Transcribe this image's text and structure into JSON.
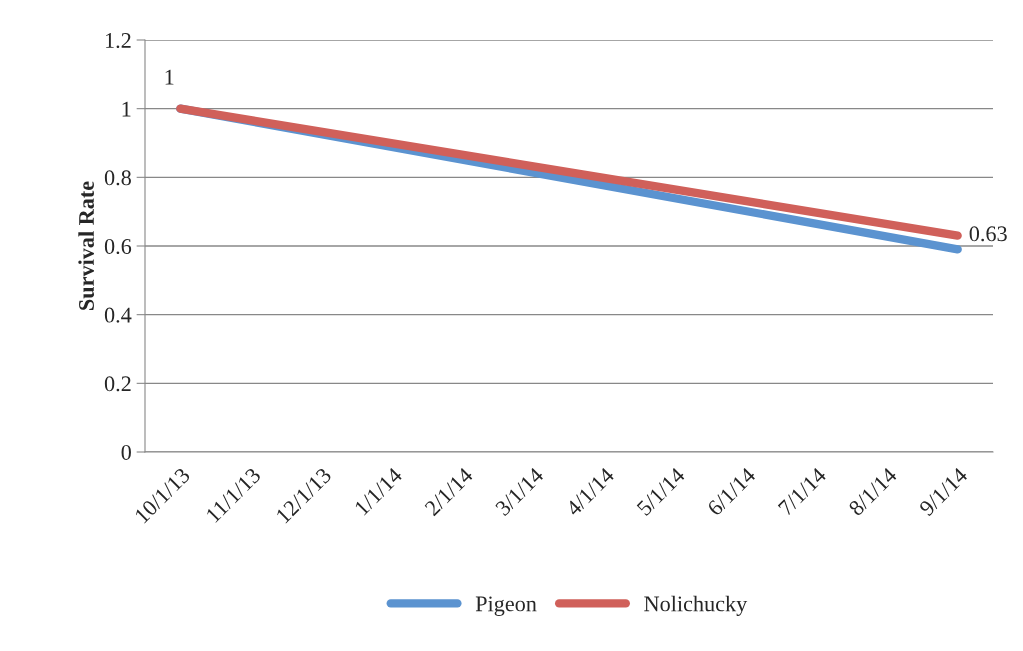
{
  "chart_data": {
    "type": "line",
    "ylabel": "Survival Rate",
    "categories": [
      "10/1/13",
      "11/1/13",
      "12/1/13",
      "1/1/14",
      "2/1/14",
      "3/1/14",
      "4/1/14",
      "5/1/14",
      "6/1/14",
      "7/1/14",
      "8/1/14",
      "9/1/14"
    ],
    "series": [
      {
        "name": "Pigeon",
        "color": "#5b93d0",
        "values": [
          1,
          null,
          null,
          null,
          null,
          null,
          null,
          null,
          null,
          null,
          null,
          0.59
        ]
      },
      {
        "name": "Nolichucky",
        "color": "#d0605a",
        "values": [
          1,
          null,
          null,
          null,
          null,
          null,
          null,
          null,
          null,
          null,
          null,
          0.63
        ],
        "value_labels": [
          "1",
          null,
          null,
          null,
          null,
          null,
          null,
          null,
          null,
          null,
          null,
          "0.63"
        ]
      }
    ],
    "ylim": [
      0,
      1.2
    ],
    "yticks": [
      0,
      0.2,
      0.4,
      0.6,
      0.8,
      1,
      1.2
    ],
    "grid": "y",
    "legend": "bottom",
    "marker": "none",
    "line_style": "solid"
  }
}
